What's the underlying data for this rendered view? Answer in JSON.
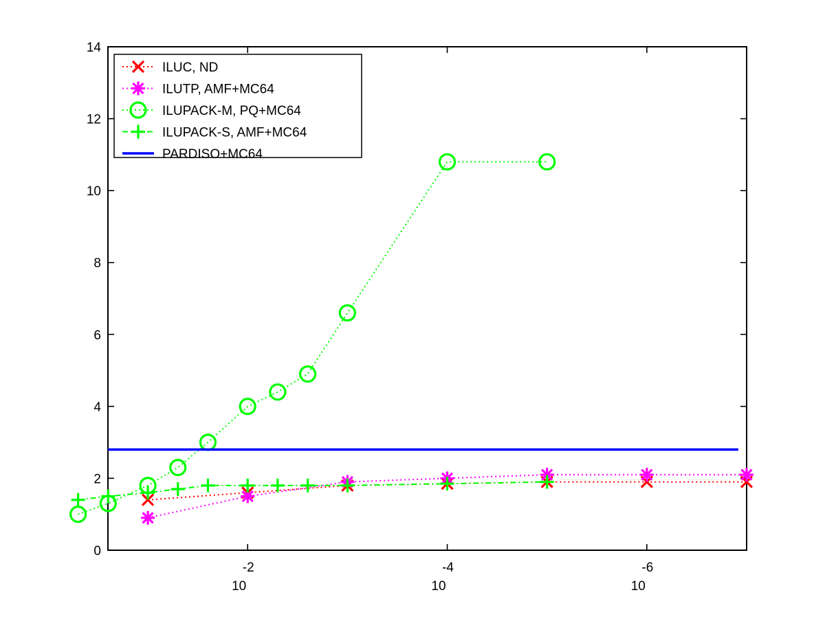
{
  "chart_data": {
    "type": "line",
    "title": "",
    "xlabel": "",
    "ylabel": "",
    "xscale": "log",
    "x_direction": "decreasing",
    "xlim": [
      0.2512,
      1e-07
    ],
    "ylim": [
      0,
      14
    ],
    "grid": false,
    "legend_position": "top-left",
    "y_ticks": [
      "0",
      "2",
      "4",
      "6",
      "8",
      "10",
      "12",
      "14"
    ],
    "x_ticks": [
      {
        "base": "10",
        "exp": "-2",
        "value": 0.01
      },
      {
        "base": "10",
        "exp": "-4",
        "value": 0.0001
      },
      {
        "base": "10",
        "exp": "-6",
        "value": 1e-06
      }
    ],
    "series": [
      {
        "name": "ILUC,  ND",
        "color": "#ff0000",
        "marker": "x",
        "linestyle": "dotted",
        "x": [
          0.1,
          0.01,
          0.001,
          0.0001,
          1e-05,
          1e-06,
          1e-07
        ],
        "values": [
          1.4,
          1.6,
          1.8,
          1.85,
          1.9,
          1.9,
          1.9
        ]
      },
      {
        "name": "ILUTP, AMF+MC64",
        "color": "#ff00ff",
        "marker": "asterisk",
        "linestyle": "dotted",
        "x": [
          0.1,
          0.01,
          0.001,
          0.0001,
          1e-05,
          1e-06,
          1e-07
        ],
        "values": [
          0.9,
          1.5,
          1.9,
          2.0,
          2.1,
          2.1,
          2.1
        ]
      },
      {
        "name": "ILUPACK-M, PQ+MC64",
        "color": "#00ff00",
        "marker": "circle",
        "linestyle": "dotted",
        "x": [
          0.5,
          0.25,
          0.1,
          0.05,
          0.025,
          0.01,
          0.005,
          0.0025,
          0.001,
          0.0001,
          1e-05
        ],
        "values": [
          1.0,
          1.3,
          1.8,
          2.3,
          3.0,
          4.0,
          4.4,
          4.9,
          6.6,
          10.8,
          10.8
        ]
      },
      {
        "name": "ILUPACK-S, AMF+MC64",
        "color": "#00ff00",
        "marker": "plus",
        "linestyle": "dashdot",
        "x": [
          0.5,
          0.25,
          0.1,
          0.05,
          0.025,
          0.01,
          0.005,
          0.0025,
          0.001,
          0.0001,
          1e-05
        ],
        "values": [
          1.4,
          1.5,
          1.6,
          1.7,
          1.8,
          1.8,
          1.8,
          1.8,
          1.8,
          1.85,
          1.9
        ]
      },
      {
        "name": "PARDISO+MC64",
        "color": "#0000ff",
        "marker": "none",
        "linestyle": "solid",
        "x": [
          0.5,
          1e-07
        ],
        "values": [
          2.8,
          2.8
        ]
      }
    ]
  }
}
